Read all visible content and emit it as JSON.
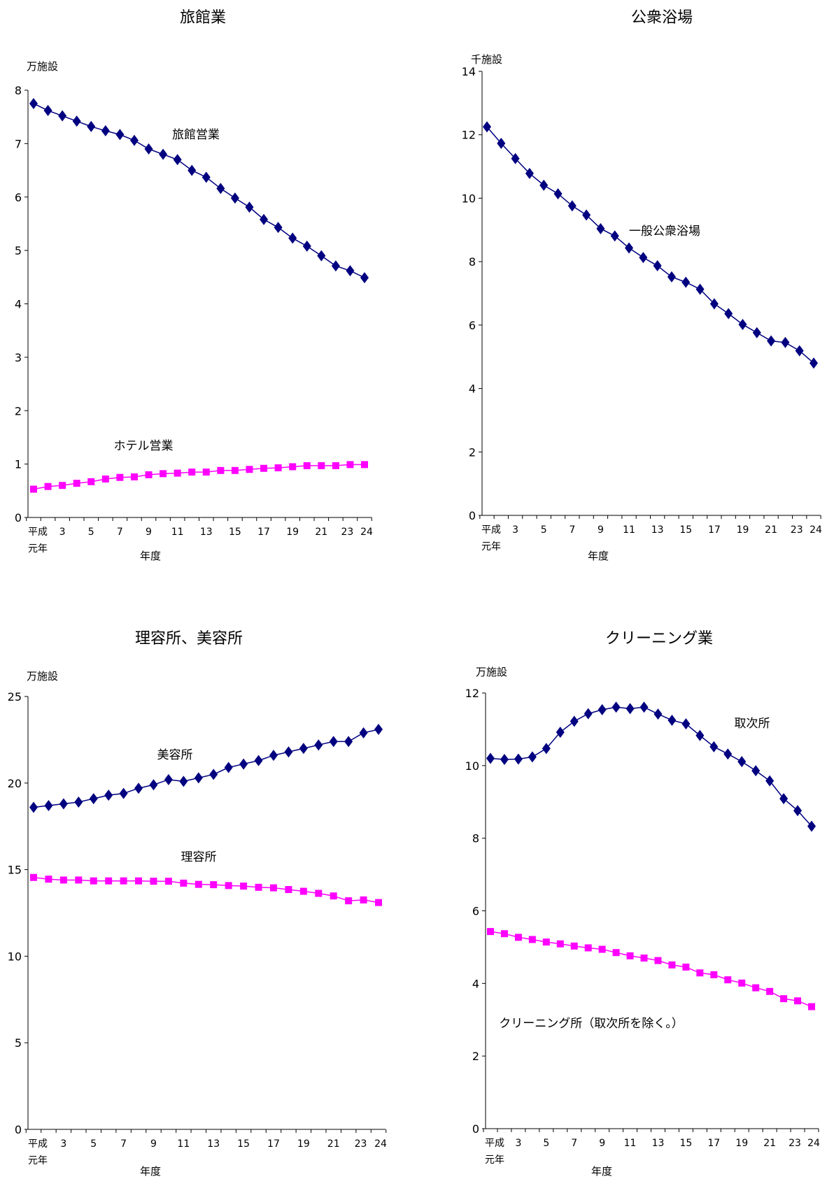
{
  "chart_data": [
    {
      "type": "line",
      "title": "旅館業",
      "unit": "万施設",
      "xlabel": "年度",
      "x_first_label": [
        "平成",
        "元年"
      ],
      "x_tick_labels": [
        "3",
        "5",
        "7",
        "9",
        "11",
        "13",
        "15",
        "17",
        "19",
        "21",
        "23",
        "24"
      ],
      "ylim": [
        0,
        8
      ],
      "yticks": [
        0,
        1,
        2,
        3,
        4,
        5,
        6,
        7,
        8
      ],
      "x": [
        1,
        2,
        3,
        4,
        5,
        6,
        7,
        8,
        9,
        10,
        11,
        12,
        13,
        14,
        15,
        16,
        17,
        18,
        19,
        20,
        21,
        22,
        23,
        24
      ],
      "series": [
        {
          "name": "旅館営業",
          "color": "#000080",
          "marker": "diamond",
          "values": [
            7.75,
            7.62,
            7.52,
            7.42,
            7.32,
            7.24,
            7.17,
            7.06,
            6.9,
            6.8,
            6.7,
            6.5,
            6.37,
            6.16,
            5.98,
            5.81,
            5.58,
            5.43,
            5.23,
            5.08,
            4.9,
            4.71,
            4.62,
            4.49
          ]
        },
        {
          "name": "ホテル営業",
          "color": "#ff00ff",
          "marker": "square",
          "values": [
            0.53,
            0.58,
            0.6,
            0.64,
            0.67,
            0.72,
            0.75,
            0.76,
            0.8,
            0.82,
            0.83,
            0.85,
            0.85,
            0.88,
            0.88,
            0.9,
            0.92,
            0.93,
            0.95,
            0.97,
            0.97,
            0.97,
            0.99,
            0.99
          ]
        }
      ]
    },
    {
      "type": "line",
      "title": "公衆浴場",
      "unit": "千施設",
      "xlabel": "年度",
      "x_first_label": [
        "平成",
        "元年"
      ],
      "x_tick_labels": [
        "3",
        "5",
        "7",
        "9",
        "11",
        "13",
        "15",
        "17",
        "19",
        "21",
        "23",
        "24"
      ],
      "ylim": [
        0,
        14
      ],
      "yticks": [
        0,
        2,
        4,
        6,
        8,
        10,
        12,
        14
      ],
      "x": [
        1,
        2,
        3,
        4,
        5,
        6,
        7,
        8,
        9,
        10,
        11,
        12,
        13,
        14,
        15,
        16,
        17,
        18,
        19,
        20,
        21,
        22,
        23,
        24
      ],
      "series": [
        {
          "name": "一般公衆浴場",
          "color": "#000080",
          "marker": "diamond",
          "values": [
            12.25,
            11.73,
            11.25,
            10.78,
            10.41,
            10.14,
            9.76,
            9.47,
            9.04,
            8.81,
            8.43,
            8.13,
            7.87,
            7.52,
            7.35,
            7.13,
            6.67,
            6.36,
            6.02,
            5.76,
            5.5,
            5.45,
            5.19,
            4.8
          ]
        }
      ]
    },
    {
      "type": "line",
      "title": "理容所、美容所",
      "unit": "万施設",
      "xlabel": "年度",
      "x_first_label": [
        "平成",
        "元年"
      ],
      "x_tick_labels": [
        "3",
        "5",
        "7",
        "9",
        "11",
        "13",
        "15",
        "17",
        "19",
        "21",
        "23",
        "24"
      ],
      "ylim": [
        0,
        25
      ],
      "yticks": [
        0,
        5,
        10,
        15,
        20,
        25
      ],
      "x": [
        1,
        2,
        3,
        4,
        5,
        6,
        7,
        8,
        9,
        10,
        11,
        12,
        13,
        14,
        15,
        16,
        17,
        18,
        19,
        20,
        21,
        22,
        23,
        24
      ],
      "series": [
        {
          "name": "美容所",
          "color": "#000080",
          "marker": "diamond",
          "values": [
            18.6,
            18.7,
            18.8,
            18.9,
            19.1,
            19.3,
            19.4,
            19.7,
            19.9,
            20.2,
            20.1,
            20.3,
            20.5,
            20.9,
            21.1,
            21.3,
            21.6,
            21.8,
            22.0,
            22.2,
            22.4,
            22.4,
            22.9,
            23.1
          ]
        },
        {
          "name": "理容所",
          "color": "#ff00ff",
          "marker": "square",
          "values": [
            14.55,
            14.45,
            14.4,
            14.4,
            14.35,
            14.35,
            14.35,
            14.35,
            14.33,
            14.33,
            14.22,
            14.15,
            14.13,
            14.08,
            14.05,
            13.98,
            13.95,
            13.85,
            13.75,
            13.63,
            13.48,
            13.2,
            13.25,
            13.1
          ]
        }
      ]
    },
    {
      "type": "line",
      "title": "クリーニング業",
      "unit": "万施設",
      "xlabel": "年度",
      "x_first_label": [
        "平成",
        "元年"
      ],
      "x_tick_labels": [
        "3",
        "5",
        "7",
        "9",
        "11",
        "13",
        "15",
        "17",
        "19",
        "21",
        "23",
        "24"
      ],
      "ylim": [
        0,
        12
      ],
      "yticks": [
        0,
        2,
        4,
        6,
        8,
        10,
        12
      ],
      "x": [
        1,
        2,
        3,
        4,
        5,
        6,
        7,
        8,
        9,
        10,
        11,
        12,
        13,
        14,
        15,
        16,
        17,
        18,
        19,
        20,
        21,
        22,
        23,
        24
      ],
      "series": [
        {
          "name": "取次所",
          "color": "#000080",
          "marker": "diamond",
          "values": [
            10.2,
            10.17,
            10.18,
            10.24,
            10.47,
            10.92,
            11.22,
            11.43,
            11.54,
            11.61,
            11.57,
            11.61,
            11.42,
            11.25,
            11.15,
            10.83,
            10.52,
            10.32,
            10.11,
            9.86,
            9.58,
            9.09,
            8.76,
            8.33
          ]
        },
        {
          "name": "クリーニング所（取次所を除く。）",
          "color": "#ff00ff",
          "marker": "square",
          "values": [
            5.43,
            5.37,
            5.27,
            5.21,
            5.14,
            5.09,
            5.03,
            4.98,
            4.94,
            4.85,
            4.76,
            4.7,
            4.63,
            4.51,
            4.45,
            4.29,
            4.24,
            4.1,
            4.01,
            3.88,
            3.78,
            3.58,
            3.52,
            3.36
          ]
        }
      ]
    }
  ]
}
